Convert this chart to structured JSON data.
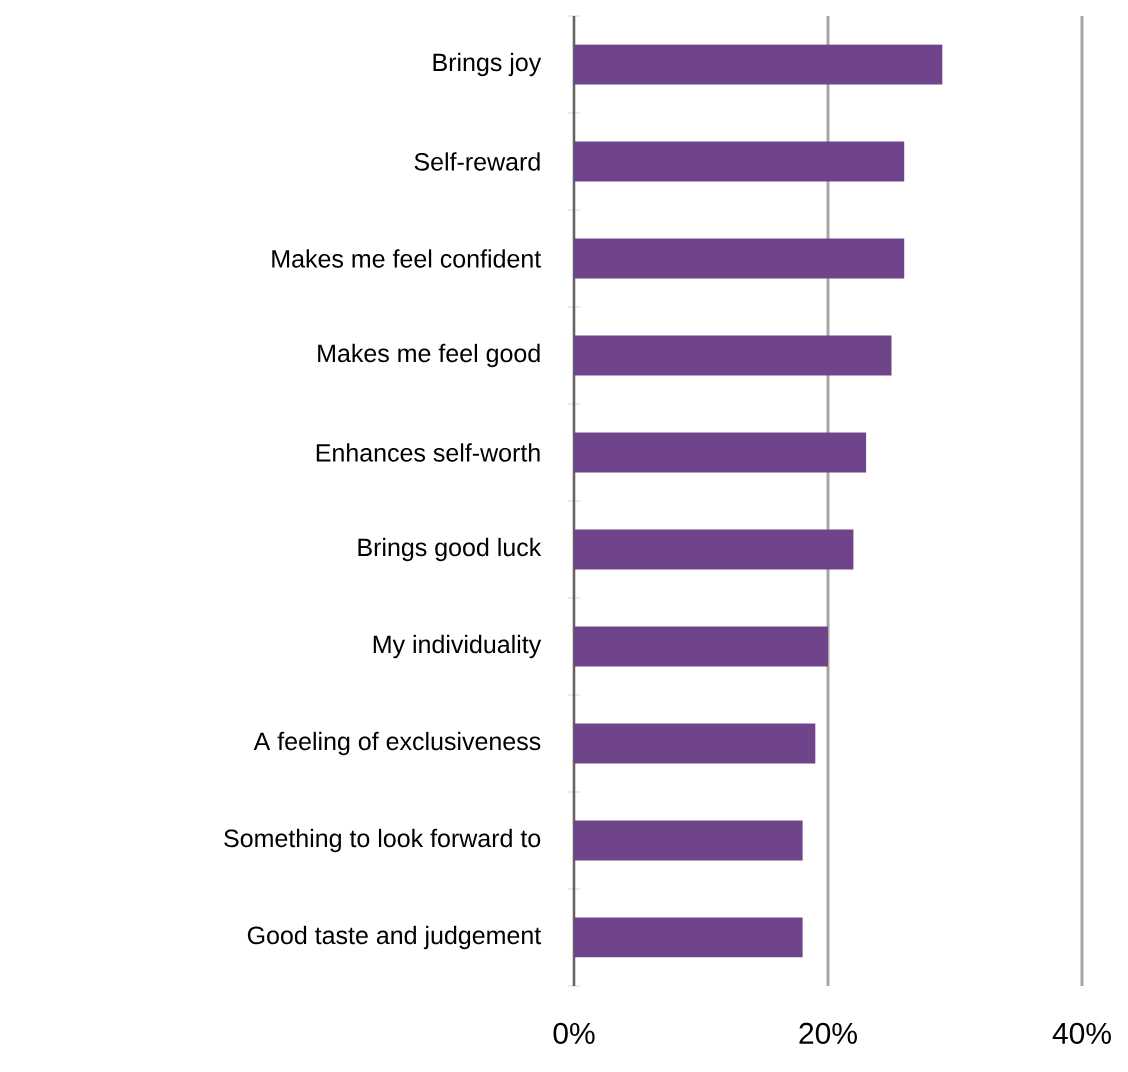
{
  "chart_data": {
    "type": "bar",
    "orientation": "horizontal",
    "categories": [
      "Brings joy",
      "Self-reward",
      "Makes me feel confident",
      "Makes me feel good",
      "Enhances self-worth",
      "Brings good luck",
      "My individuality",
      "A feeling of exclusiveness",
      "Something to look forward to",
      "Good taste and judgement"
    ],
    "values": [
      29,
      26,
      26,
      25,
      23,
      22,
      20,
      19,
      18,
      18
    ],
    "color": "#70448a",
    "xlim": [
      0,
      40
    ],
    "xticks": [
      {
        "value": 0,
        "label": "0%"
      },
      {
        "value": 20,
        "label": "20%"
      },
      {
        "value": 40,
        "label": "40%"
      }
    ],
    "grid": "x"
  }
}
